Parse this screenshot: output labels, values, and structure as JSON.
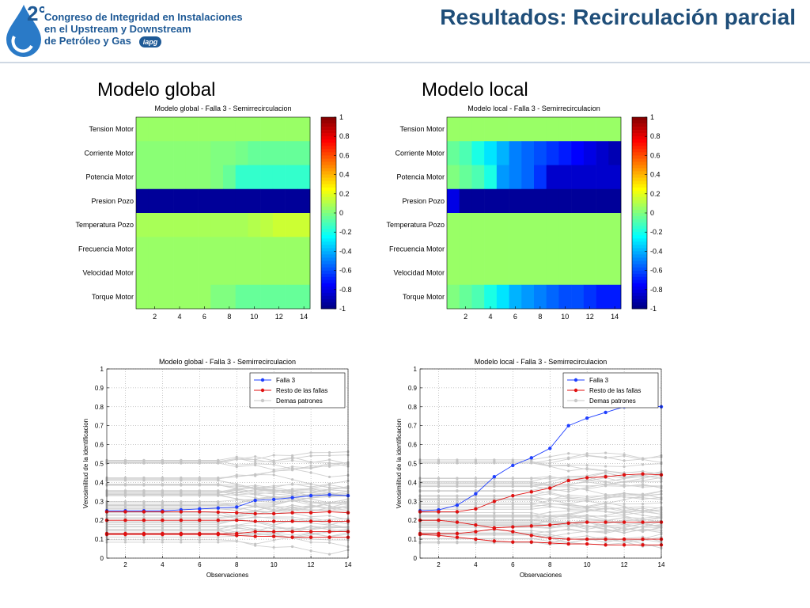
{
  "header": {
    "logo_number": "2°",
    "logo_lines": [
      "Congreso de Integridad en Instalaciones",
      "en el Upstream y Downstream",
      "de Petróleo y Gas"
    ],
    "logo_badge": "iapg",
    "title": "Resultados: Recirculación parcial"
  },
  "sections": {
    "left": "Modelo global",
    "right": "Modelo local"
  },
  "colors": {
    "brand": "#1f5a96",
    "title": "#1f4e79",
    "falla3": "#1f3fff",
    "resto": "#e01010",
    "demas": "#c8c8c8"
  },
  "chart_data": [
    {
      "type": "heatmap",
      "title": "Modelo global - Falla 3 - Semirrecirculacion",
      "rows": [
        "Tension Motor",
        "Corriente Motor",
        "Potencia Motor",
        "Presion Pozo",
        "Temperatura Pozo",
        "Frecuencia Motor",
        "Velocidad Motor",
        "Torque Motor"
      ],
      "x": [
        1,
        2,
        3,
        4,
        5,
        6,
        7,
        8,
        9,
        10,
        11,
        12,
        13,
        14
      ],
      "xticks": [
        "2",
        "4",
        "6",
        "8",
        "10",
        "12",
        "14"
      ],
      "colorbar": {
        "range": [
          -1,
          1
        ],
        "ticks": [
          "1",
          "0.8",
          "0.6",
          "0.4",
          "0.2",
          "0",
          "-0.2",
          "-0.4",
          "-0.6",
          "-0.8",
          "-1"
        ]
      },
      "values": [
        [
          0.05,
          0.05,
          0.05,
          0.05,
          0.05,
          0.05,
          0.05,
          0.05,
          0.05,
          0.05,
          0.05,
          0.05,
          0.05,
          0.05
        ],
        [
          0.02,
          0.02,
          0.02,
          0.02,
          0.02,
          0.02,
          0.0,
          0.0,
          -0.02,
          -0.05,
          -0.05,
          -0.05,
          -0.05,
          -0.05
        ],
        [
          0.02,
          0.02,
          0.02,
          0.02,
          0.02,
          0.02,
          0.0,
          -0.05,
          -0.15,
          -0.15,
          -0.15,
          -0.15,
          -0.15,
          -0.15
        ],
        [
          -0.95,
          -0.95,
          -0.95,
          -0.95,
          -0.95,
          -0.95,
          -0.95,
          -0.95,
          -0.95,
          -0.95,
          -0.95,
          -0.95,
          -0.95,
          -0.95
        ],
        [
          0.08,
          0.08,
          0.08,
          0.08,
          0.08,
          0.08,
          0.08,
          0.08,
          0.08,
          0.1,
          0.12,
          0.15,
          0.15,
          0.15
        ],
        [
          0.05,
          0.05,
          0.05,
          0.05,
          0.05,
          0.05,
          0.05,
          0.05,
          0.05,
          0.05,
          0.05,
          0.05,
          0.05,
          0.05
        ],
        [
          0.05,
          0.05,
          0.05,
          0.05,
          0.05,
          0.05,
          0.05,
          0.05,
          0.05,
          0.05,
          0.05,
          0.05,
          0.05,
          0.05
        ],
        [
          0.05,
          0.05,
          0.05,
          0.05,
          0.05,
          0.05,
          0.0,
          0.0,
          -0.05,
          -0.05,
          -0.05,
          -0.05,
          -0.05,
          -0.05
        ]
      ]
    },
    {
      "type": "heatmap",
      "title": "Modelo local - Falla 3 - Semirrecirculacion",
      "rows": [
        "Tension Motor",
        "Corriente Motor",
        "Potencia Motor",
        "Presion Pozo",
        "Temperatura Pozo",
        "Frecuencia Motor",
        "Velocidad Motor",
        "Torque Motor"
      ],
      "x": [
        1,
        2,
        3,
        4,
        5,
        6,
        7,
        8,
        9,
        10,
        11,
        12,
        13,
        14
      ],
      "xticks": [
        "2",
        "4",
        "6",
        "8",
        "10",
        "12",
        "14"
      ],
      "colorbar": {
        "range": [
          -1,
          1
        ],
        "ticks": [
          "1",
          "0.8",
          "0.6",
          "0.4",
          "0.2",
          "0",
          "-0.2",
          "-0.4",
          "-0.6",
          "-0.8",
          "-1"
        ]
      },
      "values": [
        [
          0.05,
          0.05,
          0.05,
          0.05,
          0.05,
          0.05,
          0.05,
          0.05,
          0.05,
          0.05,
          0.05,
          0.05,
          0.05,
          0.05
        ],
        [
          -0.05,
          -0.1,
          -0.2,
          -0.3,
          -0.4,
          -0.5,
          -0.55,
          -0.6,
          -0.65,
          -0.7,
          -0.75,
          -0.8,
          -0.85,
          -0.9
        ],
        [
          0.0,
          -0.05,
          -0.1,
          -0.2,
          -0.45,
          -0.5,
          -0.55,
          -0.65,
          -0.85,
          -0.85,
          -0.85,
          -0.85,
          -0.85,
          -0.85
        ],
        [
          -0.8,
          -0.95,
          -0.95,
          -0.95,
          -0.95,
          -0.95,
          -0.95,
          -0.95,
          -0.95,
          -0.95,
          -0.95,
          -0.95,
          -0.95,
          -0.95
        ],
        [
          0.05,
          0.05,
          0.05,
          0.05,
          0.05,
          0.05,
          0.05,
          0.05,
          0.05,
          0.05,
          0.05,
          0.05,
          0.05,
          0.05
        ],
        [
          0.05,
          0.05,
          0.05,
          0.05,
          0.05,
          0.05,
          0.05,
          0.05,
          0.05,
          0.05,
          0.05,
          0.05,
          0.05,
          0.05
        ],
        [
          0.05,
          0.05,
          0.05,
          0.05,
          0.05,
          0.05,
          0.05,
          0.05,
          0.05,
          0.05,
          0.05,
          0.05,
          0.05,
          0.05
        ],
        [
          0.0,
          -0.05,
          -0.1,
          -0.2,
          -0.3,
          -0.4,
          -0.45,
          -0.5,
          -0.55,
          -0.6,
          -0.6,
          -0.65,
          -0.7,
          -0.7
        ]
      ]
    },
    {
      "type": "line",
      "title": "Modelo global - Falla 3 - Semirrecirculacion",
      "xlabel": "Observaciones",
      "ylabel": "Verosimilitud de la identificacion",
      "xlim": [
        1,
        14
      ],
      "ylim": [
        0,
        1
      ],
      "xticks": [
        2,
        4,
        6,
        8,
        10,
        12,
        14
      ],
      "yticks": [
        0,
        0.1,
        0.2,
        0.3,
        0.4,
        0.5,
        0.6,
        0.7,
        0.8,
        0.9,
        1
      ],
      "legend": [
        "Falla 3",
        "Resto de las fallas",
        "Demas patrones"
      ],
      "x": [
        1,
        2,
        3,
        4,
        5,
        6,
        7,
        8,
        9,
        10,
        11,
        12,
        13,
        14
      ],
      "series": [
        {
          "name": "Falla 3",
          "values": [
            0.25,
            0.25,
            0.25,
            0.25,
            0.255,
            0.26,
            0.265,
            0.27,
            0.305,
            0.31,
            0.32,
            0.33,
            0.335,
            0.33
          ]
        },
        {
          "name": "Resto de las fallas",
          "values": [
            0.245,
            0.245,
            0.245,
            0.245,
            0.245,
            0.245,
            0.243,
            0.24,
            0.235,
            0.235,
            0.24,
            0.24,
            0.245,
            0.24
          ]
        },
        {
          "name": "Resto de las fallas",
          "values": [
            0.2,
            0.2,
            0.2,
            0.2,
            0.2,
            0.2,
            0.2,
            0.2,
            0.195,
            0.195,
            0.195,
            0.195,
            0.195,
            0.195
          ]
        },
        {
          "name": "Resto de las fallas",
          "values": [
            0.13,
            0.13,
            0.13,
            0.13,
            0.13,
            0.13,
            0.13,
            0.13,
            0.14,
            0.14,
            0.14,
            0.14,
            0.14,
            0.14
          ]
        },
        {
          "name": "Resto de las fallas",
          "values": [
            0.125,
            0.125,
            0.125,
            0.125,
            0.125,
            0.125,
            0.125,
            0.12,
            0.115,
            0.115,
            0.11,
            0.11,
            0.11,
            0.11
          ]
        }
      ]
    },
    {
      "type": "line",
      "title": "Modelo local - Falla 3 - Semirrecirculacion",
      "xlabel": "Observaciones",
      "ylabel": "Verosimilitud de la identificacion",
      "xlim": [
        1,
        14
      ],
      "ylim": [
        0,
        1
      ],
      "xticks": [
        2,
        4,
        6,
        8,
        10,
        12,
        14
      ],
      "yticks": [
        0,
        0.1,
        0.2,
        0.3,
        0.4,
        0.5,
        0.6,
        0.7,
        0.8,
        0.9,
        1
      ],
      "legend": [
        "Falla 3",
        "Resto de las fallas",
        "Demas patrones"
      ],
      "x": [
        1,
        2,
        3,
        4,
        5,
        6,
        7,
        8,
        9,
        10,
        11,
        12,
        13,
        14
      ],
      "series": [
        {
          "name": "Falla 3",
          "values": [
            0.25,
            0.255,
            0.28,
            0.34,
            0.43,
            0.49,
            0.53,
            0.58,
            0.7,
            0.74,
            0.77,
            0.8,
            0.81,
            0.8
          ]
        },
        {
          "name": "Resto de las fallas",
          "values": [
            0.245,
            0.245,
            0.245,
            0.26,
            0.3,
            0.33,
            0.35,
            0.37,
            0.41,
            0.425,
            0.43,
            0.44,
            0.445,
            0.44
          ]
        },
        {
          "name": "Resto de las fallas",
          "values": [
            0.2,
            0.2,
            0.19,
            0.175,
            0.16,
            0.165,
            0.17,
            0.175,
            0.185,
            0.19,
            0.19,
            0.19,
            0.19,
            0.19
          ]
        },
        {
          "name": "Resto de las fallas",
          "values": [
            0.13,
            0.13,
            0.13,
            0.14,
            0.155,
            0.14,
            0.12,
            0.105,
            0.1,
            0.1,
            0.1,
            0.1,
            0.1,
            0.1
          ]
        },
        {
          "name": "Resto de las fallas",
          "values": [
            0.125,
            0.12,
            0.11,
            0.1,
            0.09,
            0.085,
            0.085,
            0.08,
            0.075,
            0.075,
            0.07,
            0.07,
            0.07,
            0.07
          ]
        }
      ]
    }
  ]
}
